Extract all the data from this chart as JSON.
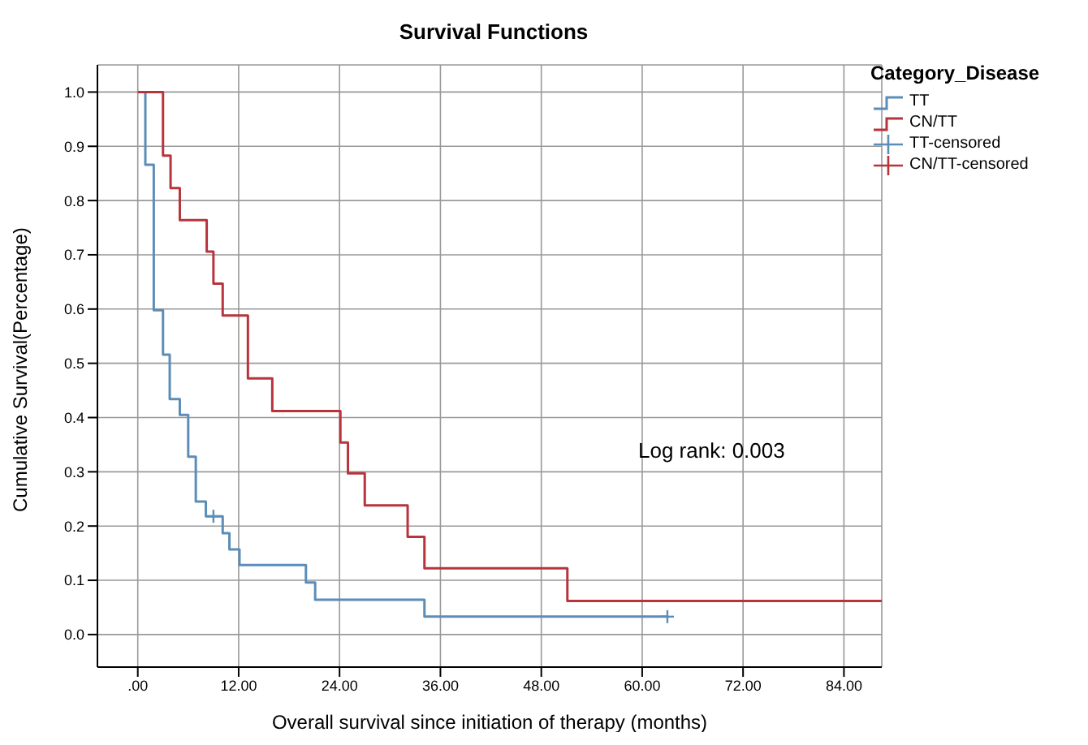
{
  "chart_data": {
    "type": "step",
    "title": "Survival Functions",
    "xlabel": "Overall survival since initiation of therapy (months)",
    "ylabel": "Cumulative Survival(Percentage)",
    "legend_title": "Category_Disease",
    "legend": "right",
    "xlim": [
      -4.8,
      88.5
    ],
    "ylim": [
      -0.06,
      1.05
    ],
    "xticks": [
      {
        "value": 0,
        "label": ".00"
      },
      {
        "value": 12,
        "label": "12.00"
      },
      {
        "value": 24,
        "label": "24.00"
      },
      {
        "value": 36,
        "label": "36.00"
      },
      {
        "value": 48,
        "label": "48.00"
      },
      {
        "value": 60,
        "label": "60.00"
      },
      {
        "value": 72,
        "label": "72.00"
      },
      {
        "value": 84,
        "label": "84.00"
      }
    ],
    "yticks": [
      {
        "value": 0,
        "label": "0.0"
      },
      {
        "value": 0.1,
        "label": "0.1"
      },
      {
        "value": 0.2,
        "label": "0.2"
      },
      {
        "value": 0.3,
        "label": "0.3"
      },
      {
        "value": 0.4,
        "label": "0.4"
      },
      {
        "value": 0.5,
        "label": "0.5"
      },
      {
        "value": 0.6,
        "label": "0.6"
      },
      {
        "value": 0.7,
        "label": "0.7"
      },
      {
        "value": 0.8,
        "label": "0.8"
      },
      {
        "value": 0.9,
        "label": "0.9"
      },
      {
        "value": 1,
        "label": "1.0"
      }
    ],
    "grid": true,
    "annotations": [
      "Log rank: 0.003"
    ],
    "series": [
      {
        "name": "TT",
        "color": "#5b8db8",
        "x": [
          0,
          0.9,
          1.9,
          3.0,
          3.8,
          5.0,
          6.0,
          6.9,
          8.1,
          10.1,
          10.9,
          12.1,
          20.0,
          21.1,
          34.1,
          63.0
        ],
        "values": [
          1,
          0.866,
          0.598,
          0.516,
          0.434,
          0.405,
          0.328,
          0.245,
          0.218,
          0.187,
          0.157,
          0.128,
          0.096,
          0.064,
          0.033,
          0.033
        ]
      },
      {
        "name": "CN/TT",
        "color": "#b8343c",
        "x": [
          0,
          3.0,
          3.9,
          5.0,
          8.2,
          9.0,
          10.1,
          13.1,
          16.0,
          24.1,
          25.0,
          27.0,
          32.1,
          34.1,
          51.1,
          88.5
        ],
        "values": [
          1,
          0.883,
          0.823,
          0.764,
          0.706,
          0.647,
          0.588,
          0.472,
          0.412,
          0.354,
          0.297,
          0.238,
          0.18,
          0.122,
          0.062,
          0.062
        ]
      },
      {
        "name": "TT-censored",
        "type": "scatter",
        "marker": "cross",
        "color": "#5b8db8",
        "x": [
          9.0,
          63.0
        ],
        "values": [
          0.218,
          0.033
        ]
      },
      {
        "name": "CN/TT-censored",
        "type": "scatter",
        "marker": "cross",
        "color": "#b8343c"
      }
    ]
  }
}
